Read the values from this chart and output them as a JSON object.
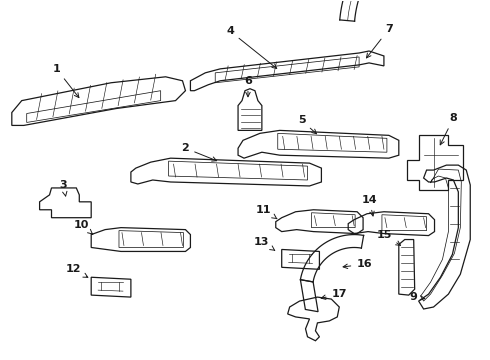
{
  "bg_color": "#ffffff",
  "line_color": "#1a1a1a",
  "lw": 0.9,
  "figsize": [
    4.9,
    3.6
  ],
  "dpi": 100
}
